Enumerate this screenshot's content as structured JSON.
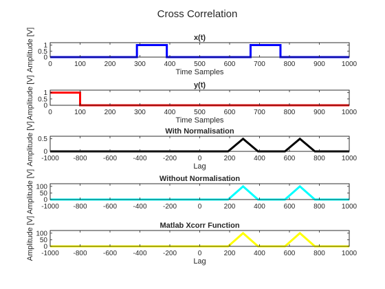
{
  "figure": {
    "suptitle": "Cross Correlation"
  },
  "chart_data": [
    {
      "type": "line",
      "title": "x(t)",
      "xlabel": "Time Samples",
      "ylabel": "Amplitude [V]",
      "xlim": [
        0,
        1000
      ],
      "ylim": [
        0,
        1.2
      ],
      "xticks": [
        0,
        100,
        200,
        300,
        400,
        500,
        600,
        700,
        800,
        900,
        1000
      ],
      "yticks": [
        0,
        0.5,
        1
      ],
      "ytick_labels": [
        "0",
        "0.5",
        "1"
      ],
      "color": "#0000ff",
      "x": [
        0,
        290,
        290,
        390,
        390,
        670,
        670,
        770,
        770,
        1000
      ],
      "y": [
        0,
        0,
        1,
        1,
        0,
        0,
        1,
        1,
        0,
        0
      ]
    },
    {
      "type": "line",
      "title": "y(t)",
      "xlabel": "Time Samples",
      "ylabel": "Amplitude [V]",
      "xlim": [
        0,
        1000
      ],
      "ylim": [
        0,
        1.2
      ],
      "xticks": [
        0,
        100,
        200,
        300,
        400,
        500,
        600,
        700,
        800,
        900,
        1000
      ],
      "yticks": [
        0,
        0.5,
        1
      ],
      "ytick_labels": [
        "0",
        "0.5",
        "1"
      ],
      "color": "#ff0000",
      "x": [
        0,
        100,
        100,
        1000
      ],
      "y": [
        1,
        1,
        0,
        0
      ]
    },
    {
      "type": "line",
      "title": "With Normalisation",
      "xlabel": "Lag",
      "ylabel": "Amplitude [V]",
      "xlim": [
        -1000,
        1000
      ],
      "ylim": [
        0,
        0.6
      ],
      "xticks": [
        -1000,
        -800,
        -600,
        -400,
        -200,
        0,
        200,
        400,
        600,
        800,
        1000
      ],
      "yticks": [
        0,
        0.5
      ],
      "ytick_labels": [
        "0",
        "0.5"
      ],
      "color": "#000000",
      "x": [
        -1000,
        190,
        290,
        390,
        570,
        670,
        770,
        1000
      ],
      "y": [
        0,
        0,
        0.5,
        0,
        0,
        0.5,
        0,
        0
      ]
    },
    {
      "type": "line",
      "title": "Without Normalisation",
      "xlabel": "",
      "ylabel": "Amplitude [V]",
      "xlim": [
        -1000,
        1000
      ],
      "ylim": [
        0,
        120
      ],
      "xticks": [
        -1000,
        -800,
        -600,
        -400,
        -200,
        0,
        200,
        400,
        600,
        800,
        1000
      ],
      "yticks": [
        0,
        50,
        100
      ],
      "ytick_labels": [
        "0",
        "50",
        "100"
      ],
      "color": "#00ffff",
      "x": [
        -1000,
        190,
        290,
        390,
        570,
        670,
        770,
        1000
      ],
      "y": [
        0,
        0,
        100,
        0,
        0,
        100,
        0,
        0
      ]
    },
    {
      "type": "line",
      "title": "Matlab Xcorr Function",
      "xlabel": "Lag",
      "ylabel": "Amplitude [V]",
      "xlim": [
        -1000,
        1000
      ],
      "ylim": [
        0,
        120
      ],
      "xticks": [
        -1000,
        -800,
        -600,
        -400,
        -200,
        0,
        200,
        400,
        600,
        800,
        1000
      ],
      "yticks": [
        0,
        50,
        100
      ],
      "ytick_labels": [
        "0",
        "50",
        "100"
      ],
      "color": "#ffff00",
      "x": [
        -1000,
        190,
        290,
        390,
        570,
        670,
        770,
        1000
      ],
      "y": [
        0,
        0,
        100,
        0,
        0,
        100,
        0,
        0
      ]
    }
  ]
}
